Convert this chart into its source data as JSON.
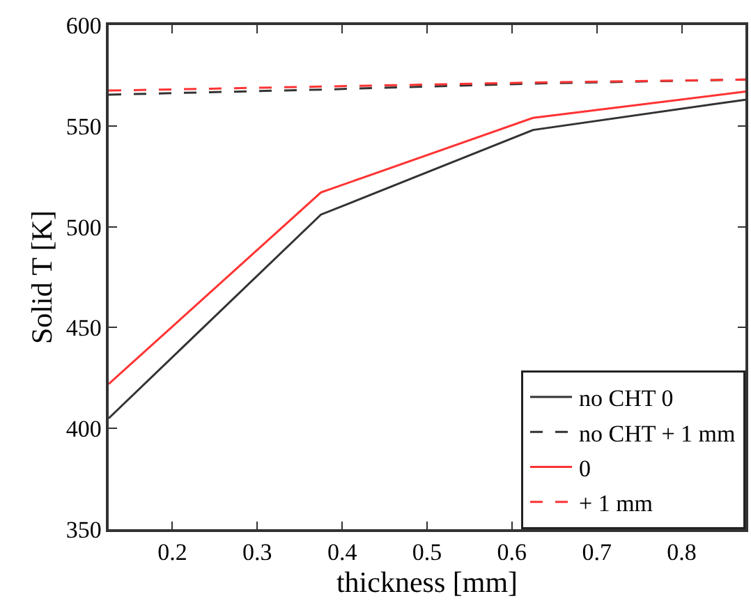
{
  "chart_data": {
    "type": "line",
    "xlabel": "thickness [mm]",
    "ylabel": "Solid T [K]",
    "x": [
      0.125,
      0.375,
      0.625,
      0.875
    ],
    "series": [
      {
        "name": "no CHT 0",
        "color": "#333333",
        "line_style": "solid",
        "values": [
          405,
          506,
          548,
          563
        ]
      },
      {
        "name": "no CHT + 1 mm",
        "color": "#333333",
        "line_style": "dashed",
        "values": [
          565.5,
          568,
          571,
          573
        ]
      },
      {
        "name": "0",
        "color": "#ff3333",
        "line_style": "solid",
        "values": [
          422,
          517,
          554,
          567
        ]
      },
      {
        "name": "+ 1 mm",
        "color": "#ff3333",
        "line_style": "dashed",
        "values": [
          567.5,
          569.5,
          571.5,
          573
        ]
      }
    ],
    "xlim": [
      0.125,
      0.875
    ],
    "xticks": [
      0.2,
      0.3,
      0.4,
      0.5,
      0.6,
      0.7,
      0.8
    ],
    "ylim": [
      350,
      600
    ],
    "yticks": [
      350,
      400,
      450,
      500,
      550,
      600
    ],
    "legend": "bottom right",
    "marker": "none"
  }
}
